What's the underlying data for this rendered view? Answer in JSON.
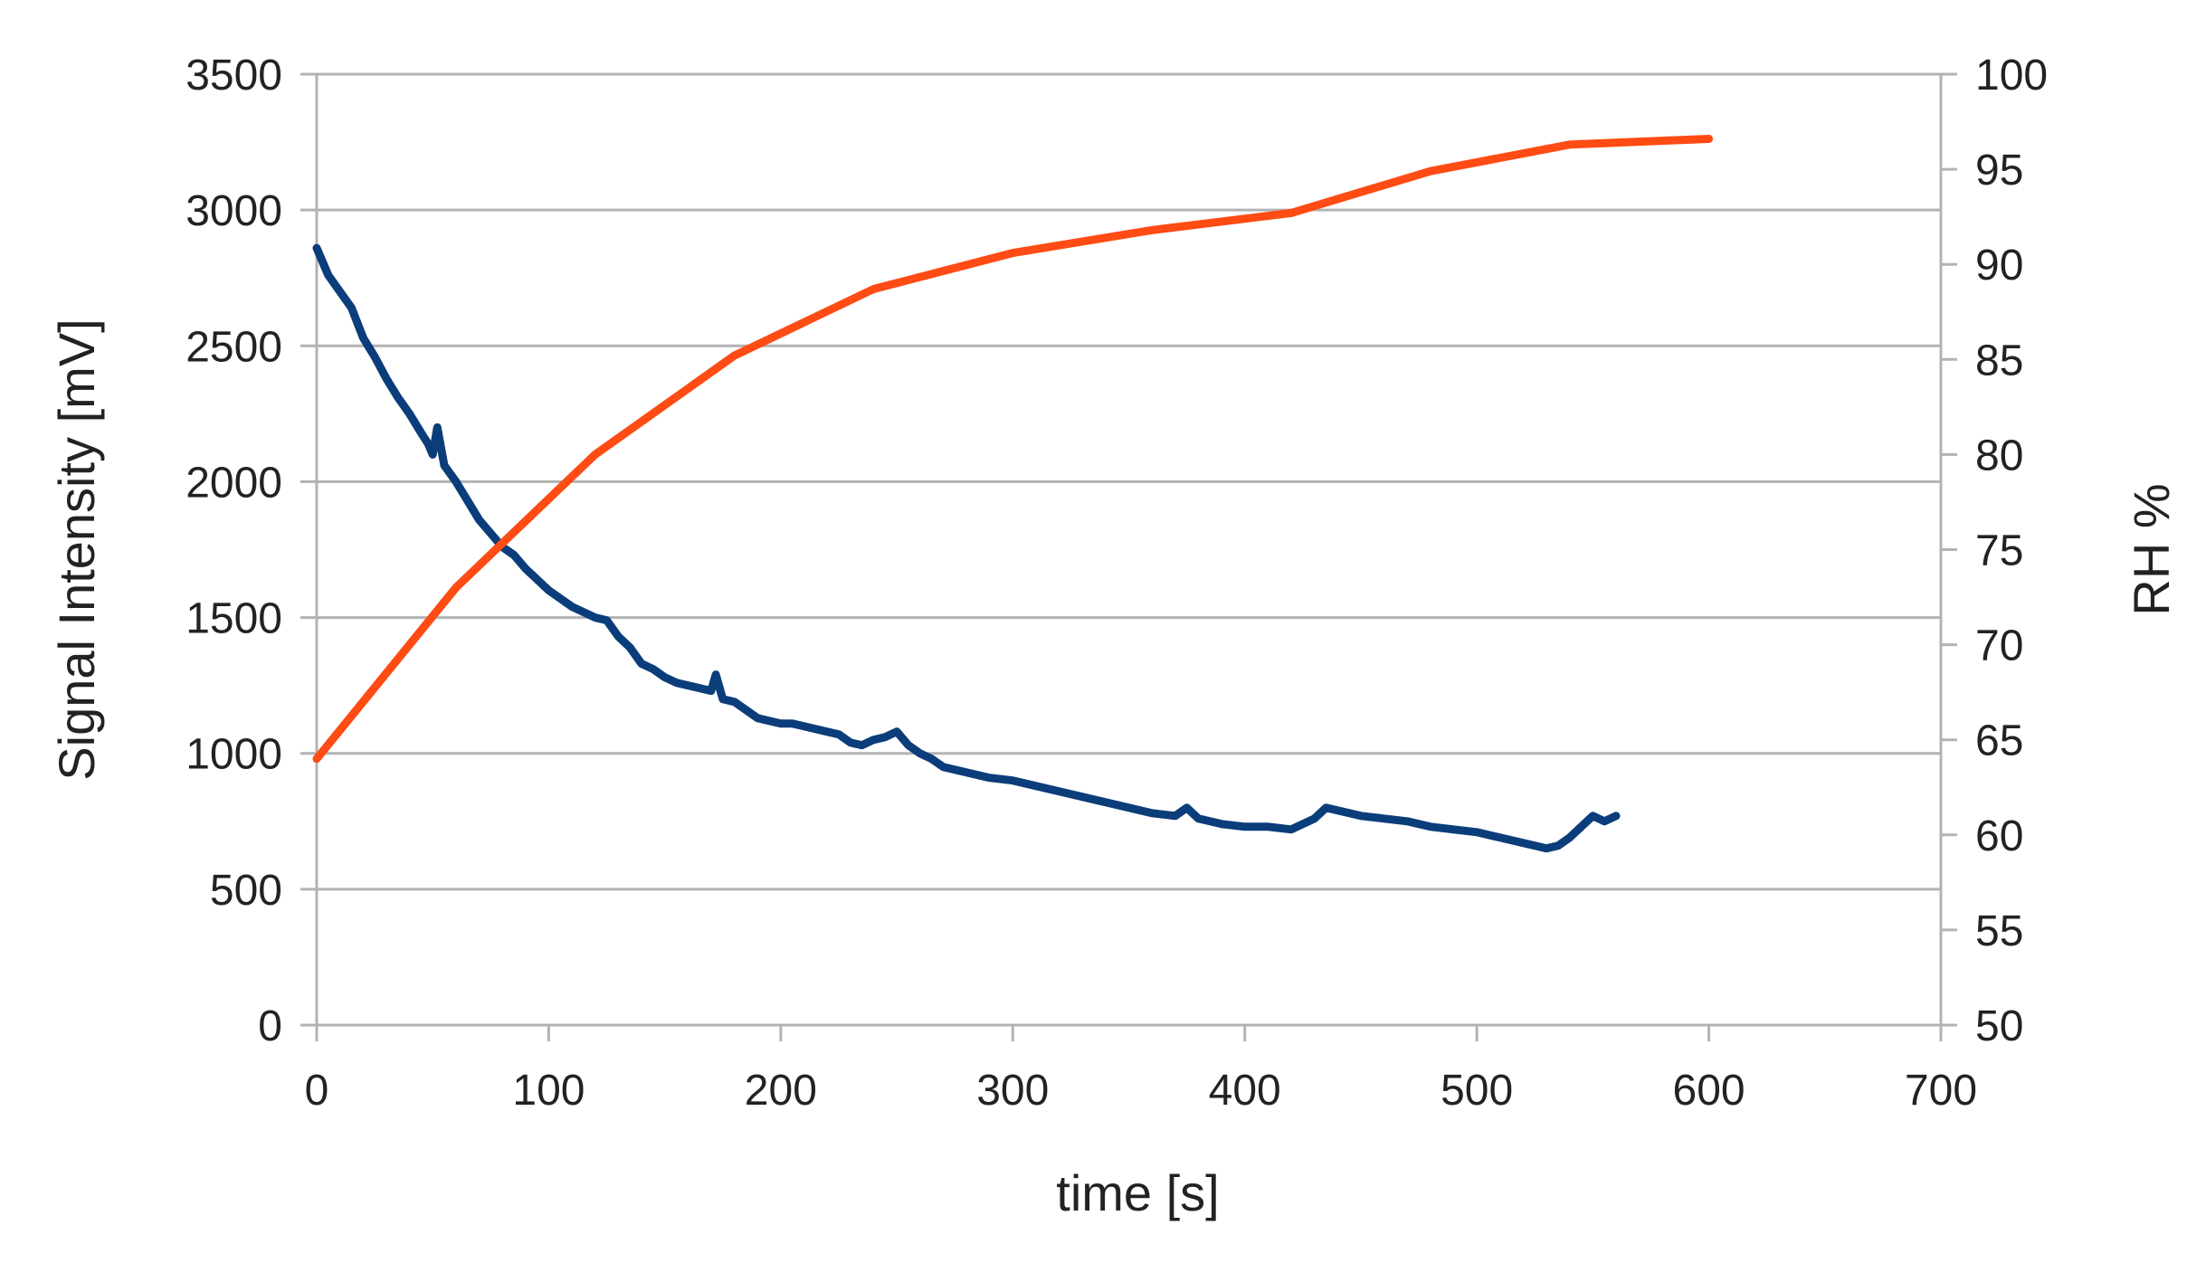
{
  "chart_data": {
    "type": "line",
    "title": "",
    "xlabel": "time [s]",
    "ylabel_left": "Signal Intensity [mV]",
    "ylabel_right": "RH %",
    "xlim": [
      0,
      700
    ],
    "ylim_left": [
      0,
      3500
    ],
    "ylim_right": [
      50,
      100
    ],
    "x_ticks": [
      0,
      100,
      200,
      300,
      400,
      500,
      600,
      700
    ],
    "y_left_ticks": [
      0,
      500,
      1000,
      1500,
      2000,
      2500,
      3000,
      3500
    ],
    "y_right_ticks": [
      50,
      55,
      60,
      65,
      70,
      75,
      80,
      85,
      90,
      95,
      100
    ],
    "grid": true,
    "series": [
      {
        "name": "Signal Intensity",
        "axis": "left",
        "color": "#0b3d7a",
        "x": [
          0,
          5,
          10,
          15,
          20,
          25,
          30,
          35,
          40,
          45,
          48,
          50,
          52,
          55,
          60,
          65,
          70,
          75,
          80,
          85,
          90,
          95,
          100,
          105,
          110,
          115,
          120,
          125,
          130,
          135,
          140,
          145,
          150,
          155,
          160,
          165,
          170,
          172,
          175,
          180,
          185,
          190,
          195,
          200,
          205,
          210,
          215,
          220,
          225,
          230,
          235,
          240,
          245,
          250,
          255,
          260,
          265,
          270,
          275,
          280,
          290,
          300,
          310,
          320,
          330,
          340,
          350,
          360,
          370,
          375,
          380,
          390,
          400,
          410,
          420,
          430,
          435,
          440,
          445,
          450,
          460,
          470,
          480,
          490,
          500,
          510,
          520,
          530,
          535,
          540,
          545,
          550,
          555,
          560
        ],
        "values": [
          2860,
          2760,
          2700,
          2640,
          2530,
          2460,
          2380,
          2310,
          2250,
          2180,
          2140,
          2100,
          2200,
          2060,
          2000,
          1930,
          1860,
          1810,
          1760,
          1730,
          1680,
          1640,
          1600,
          1570,
          1540,
          1520,
          1500,
          1490,
          1430,
          1390,
          1330,
          1310,
          1280,
          1260,
          1250,
          1240,
          1230,
          1290,
          1200,
          1190,
          1160,
          1130,
          1120,
          1110,
          1110,
          1100,
          1090,
          1080,
          1070,
          1040,
          1030,
          1050,
          1060,
          1080,
          1030,
          1000,
          980,
          950,
          940,
          930,
          910,
          900,
          880,
          860,
          840,
          820,
          800,
          780,
          770,
          800,
          760,
          740,
          730,
          730,
          720,
          760,
          800,
          790,
          780,
          770,
          760,
          750,
          730,
          720,
          710,
          690,
          670,
          650,
          660,
          690,
          730,
          770,
          750,
          770
        ]
      },
      {
        "name": "RH %",
        "axis": "right",
        "color": "#ff4b14",
        "x": [
          0,
          60,
          120,
          180,
          240,
          300,
          360,
          420,
          480,
          540,
          600
        ],
        "values": [
          64,
          73,
          80,
          85.2,
          88.7,
          90.6,
          91.8,
          92.7,
          94.9,
          96.3,
          96.6
        ]
      }
    ]
  }
}
